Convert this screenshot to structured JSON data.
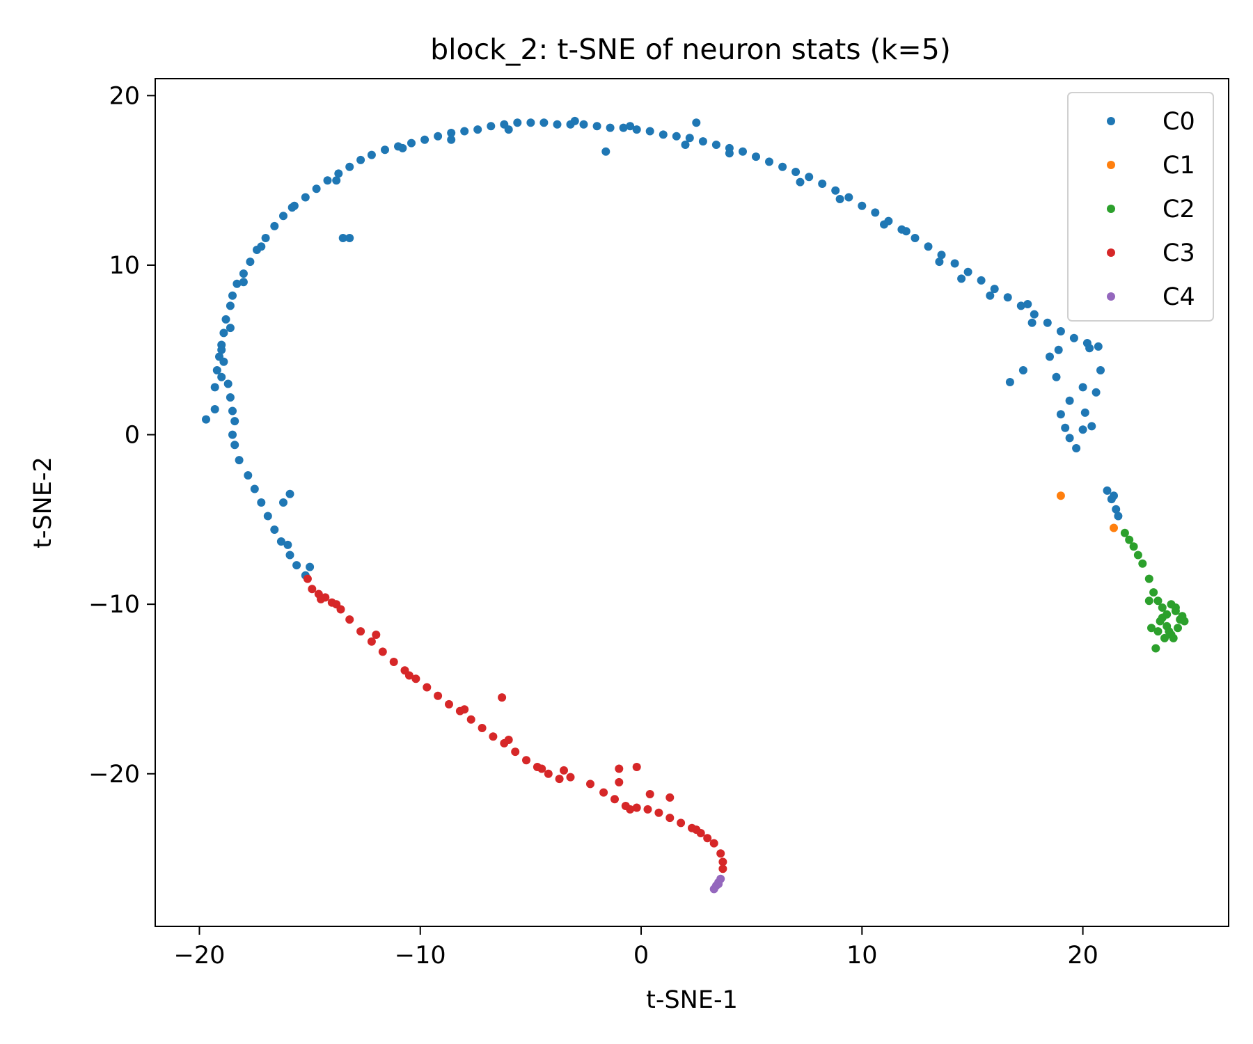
{
  "chart_data": {
    "type": "scatter",
    "title": "block_2: t-SNE of neuron stats (k=5)",
    "xlabel": "t-SNE-1",
    "ylabel": "t-SNE-2",
    "xlim": [
      -22,
      26.6
    ],
    "ylim": [
      -29,
      21
    ],
    "x_ticks": [
      -20,
      -10,
      0,
      10,
      20
    ],
    "y_ticks": [
      -20,
      -10,
      0,
      10,
      20
    ],
    "x_tick_labels": [
      "−20",
      "−10",
      "0",
      "10",
      "20"
    ],
    "y_tick_labels": [
      "−20",
      "−10",
      "0",
      "10",
      "20"
    ],
    "grid": false,
    "legend_position": "top-right",
    "series": [
      {
        "name": "C0",
        "color": "#1f77b4",
        "points": [
          [
            -19.7,
            0.9
          ],
          [
            -19.3,
            1.5
          ],
          [
            -19.3,
            2.8
          ],
          [
            -19.2,
            3.8
          ],
          [
            -19.1,
            4.6
          ],
          [
            -19.0,
            5.3
          ],
          [
            -18.9,
            6.0
          ],
          [
            -18.8,
            6.8
          ],
          [
            -18.6,
            7.6
          ],
          [
            -18.5,
            8.2
          ],
          [
            -18.3,
            8.9
          ],
          [
            -18.0,
            9.5
          ],
          [
            -17.7,
            10.2
          ],
          [
            -17.4,
            10.9
          ],
          [
            -17.0,
            11.6
          ],
          [
            -16.6,
            12.3
          ],
          [
            -16.2,
            12.9
          ],
          [
            -15.7,
            13.5
          ],
          [
            -15.2,
            14.0
          ],
          [
            -14.7,
            14.5
          ],
          [
            -14.2,
            15.0
          ],
          [
            -13.7,
            15.4
          ],
          [
            -13.2,
            15.8
          ],
          [
            -12.7,
            16.2
          ],
          [
            -12.2,
            16.5
          ],
          [
            -11.6,
            16.8
          ],
          [
            -11.0,
            17.0
          ],
          [
            -10.4,
            17.2
          ],
          [
            -9.8,
            17.4
          ],
          [
            -9.2,
            17.6
          ],
          [
            -8.6,
            17.8
          ],
          [
            -8.0,
            17.9
          ],
          [
            -7.4,
            18.0
          ],
          [
            -6.8,
            18.2
          ],
          [
            -6.2,
            18.3
          ],
          [
            -5.6,
            18.4
          ],
          [
            -5.0,
            18.4
          ],
          [
            -4.4,
            18.4
          ],
          [
            -3.8,
            18.3
          ],
          [
            -3.2,
            18.3
          ],
          [
            -2.6,
            18.3
          ],
          [
            -2.0,
            18.2
          ],
          [
            -1.4,
            18.1
          ],
          [
            -0.8,
            18.1
          ],
          [
            -0.2,
            18.0
          ],
          [
            0.4,
            17.9
          ],
          [
            1.0,
            17.7
          ],
          [
            1.6,
            17.6
          ],
          [
            2.2,
            17.5
          ],
          [
            2.8,
            17.3
          ],
          [
            3.4,
            17.1
          ],
          [
            4.0,
            16.9
          ],
          [
            4.6,
            16.7
          ],
          [
            5.2,
            16.4
          ],
          [
            5.8,
            16.1
          ],
          [
            6.4,
            15.8
          ],
          [
            7.0,
            15.5
          ],
          [
            7.6,
            15.2
          ],
          [
            8.2,
            14.8
          ],
          [
            8.8,
            14.4
          ],
          [
            9.4,
            14.0
          ],
          [
            10.0,
            13.5
          ],
          [
            10.6,
            13.1
          ],
          [
            11.2,
            12.6
          ],
          [
            11.8,
            12.1
          ],
          [
            12.4,
            11.6
          ],
          [
            13.0,
            11.1
          ],
          [
            13.6,
            10.6
          ],
          [
            14.2,
            10.1
          ],
          [
            14.8,
            9.6
          ],
          [
            15.4,
            9.1
          ],
          [
            16.0,
            8.6
          ],
          [
            16.6,
            8.1
          ],
          [
            17.2,
            7.6
          ],
          [
            17.8,
            7.1
          ],
          [
            18.4,
            6.6
          ],
          [
            19.0,
            6.1
          ],
          [
            19.6,
            5.7
          ],
          [
            20.2,
            5.4
          ],
          [
            20.7,
            5.2
          ],
          [
            -13.5,
            11.6
          ],
          [
            -13.2,
            11.6
          ],
          [
            -1.6,
            16.7
          ],
          [
            2.5,
            18.4
          ],
          [
            -19.0,
            5.0
          ],
          [
            -18.9,
            4.3
          ],
          [
            -18.7,
            3.0
          ],
          [
            -18.6,
            2.2
          ],
          [
            -18.5,
            1.4
          ],
          [
            -18.4,
            0.8
          ],
          [
            -18.5,
            0.0
          ],
          [
            -18.4,
            -0.6
          ],
          [
            -18.2,
            -1.5
          ],
          [
            -17.8,
            -2.4
          ],
          [
            -17.5,
            -3.2
          ],
          [
            -17.2,
            -4.0
          ],
          [
            -16.9,
            -4.8
          ],
          [
            -16.6,
            -5.6
          ],
          [
            -16.3,
            -6.3
          ],
          [
            -15.9,
            -7.1
          ],
          [
            -15.6,
            -7.7
          ],
          [
            -15.2,
            -8.3
          ],
          [
            -16.2,
            -4.0
          ],
          [
            -15.9,
            -3.5
          ],
          [
            -15.0,
            -7.8
          ],
          [
            -16.0,
            -6.5
          ],
          [
            17.7,
            6.6
          ],
          [
            16.7,
            3.1
          ],
          [
            17.3,
            3.8
          ],
          [
            18.5,
            4.6
          ],
          [
            18.8,
            3.4
          ],
          [
            19.0,
            1.2
          ],
          [
            19.2,
            0.4
          ],
          [
            19.4,
            -0.2
          ],
          [
            19.7,
            -0.8
          ],
          [
            20.1,
            1.3
          ],
          [
            20.4,
            0.5
          ],
          [
            20.6,
            2.5
          ],
          [
            20.8,
            3.8
          ],
          [
            20.3,
            5.1
          ],
          [
            21.1,
            -3.3
          ],
          [
            21.3,
            -3.8
          ],
          [
            21.5,
            -4.4
          ],
          [
            21.6,
            -4.8
          ],
          [
            21.4,
            -3.6
          ],
          [
            15.8,
            8.2
          ],
          [
            17.5,
            7.7
          ],
          [
            18.9,
            5.0
          ],
          [
            19.4,
            2.0
          ],
          [
            20.0,
            0.3
          ],
          [
            20.0,
            2.8
          ],
          [
            13.5,
            10.2
          ],
          [
            14.5,
            9.2
          ],
          [
            11.0,
            12.4
          ],
          [
            12.0,
            12.0
          ],
          [
            9.0,
            13.9
          ],
          [
            7.2,
            14.9
          ],
          [
            4.0,
            16.6
          ],
          [
            2.0,
            17.1
          ],
          [
            -0.5,
            18.2
          ],
          [
            -3.0,
            18.5
          ],
          [
            -6.0,
            18.0
          ],
          [
            -8.6,
            17.4
          ],
          [
            -10.8,
            16.9
          ],
          [
            -13.8,
            15.0
          ],
          [
            -15.8,
            13.4
          ],
          [
            -17.2,
            11.1
          ],
          [
            -18.0,
            9.0
          ],
          [
            -18.6,
            6.3
          ],
          [
            -19.0,
            3.4
          ]
        ]
      },
      {
        "name": "C1",
        "color": "#ff7f0e",
        "points": [
          [
            19.0,
            -3.6
          ],
          [
            21.4,
            -5.5
          ]
        ]
      },
      {
        "name": "C2",
        "color": "#2ca02c",
        "points": [
          [
            21.9,
            -5.8
          ],
          [
            22.1,
            -6.2
          ],
          [
            22.3,
            -6.6
          ],
          [
            22.5,
            -7.1
          ],
          [
            22.7,
            -7.6
          ],
          [
            23.0,
            -8.5
          ],
          [
            23.2,
            -9.3
          ],
          [
            23.4,
            -9.8
          ],
          [
            23.6,
            -10.2
          ],
          [
            23.8,
            -10.6
          ],
          [
            24.0,
            -10.0
          ],
          [
            24.2,
            -10.4
          ],
          [
            24.4,
            -10.9
          ],
          [
            24.6,
            -11.0
          ],
          [
            24.3,
            -11.4
          ],
          [
            24.0,
            -11.8
          ],
          [
            23.7,
            -12.0
          ],
          [
            23.4,
            -11.6
          ],
          [
            23.1,
            -11.4
          ],
          [
            23.3,
            -12.6
          ],
          [
            23.5,
            -11.0
          ],
          [
            23.8,
            -11.3
          ],
          [
            24.2,
            -10.2
          ],
          [
            24.5,
            -10.7
          ],
          [
            23.0,
            -9.8
          ],
          [
            23.6,
            -10.8
          ],
          [
            23.9,
            -11.6
          ],
          [
            24.1,
            -12.0
          ]
        ]
      },
      {
        "name": "C3",
        "color": "#d62728",
        "points": [
          [
            -15.1,
            -8.5
          ],
          [
            -14.9,
            -9.1
          ],
          [
            -14.6,
            -9.4
          ],
          [
            -14.3,
            -9.6
          ],
          [
            -14.0,
            -9.9
          ],
          [
            -13.6,
            -10.3
          ],
          [
            -13.2,
            -10.9
          ],
          [
            -12.7,
            -11.6
          ],
          [
            -12.2,
            -12.2
          ],
          [
            -11.7,
            -12.8
          ],
          [
            -11.2,
            -13.4
          ],
          [
            -10.7,
            -13.9
          ],
          [
            -10.2,
            -14.4
          ],
          [
            -9.7,
            -14.9
          ],
          [
            -9.2,
            -15.4
          ],
          [
            -8.7,
            -15.9
          ],
          [
            -8.2,
            -16.3
          ],
          [
            -7.7,
            -16.8
          ],
          [
            -7.2,
            -17.3
          ],
          [
            -6.7,
            -17.8
          ],
          [
            -6.2,
            -18.2
          ],
          [
            -5.7,
            -18.7
          ],
          [
            -5.2,
            -19.2
          ],
          [
            -4.7,
            -19.6
          ],
          [
            -4.2,
            -20.0
          ],
          [
            -3.7,
            -20.3
          ],
          [
            -3.2,
            -20.2
          ],
          [
            -2.3,
            -20.6
          ],
          [
            -1.7,
            -21.1
          ],
          [
            -1.2,
            -21.5
          ],
          [
            -0.7,
            -21.9
          ],
          [
            -0.2,
            -22.0
          ],
          [
            0.3,
            -22.1
          ],
          [
            0.8,
            -22.3
          ],
          [
            1.3,
            -22.6
          ],
          [
            1.8,
            -22.9
          ],
          [
            2.3,
            -23.2
          ],
          [
            2.7,
            -23.5
          ],
          [
            3.0,
            -23.8
          ],
          [
            3.3,
            -24.1
          ],
          [
            3.6,
            -24.7
          ],
          [
            3.7,
            -25.2
          ],
          [
            3.7,
            -25.6
          ],
          [
            -6.3,
            -15.5
          ],
          [
            -1.0,
            -19.7
          ],
          [
            -0.2,
            -19.6
          ],
          [
            -1.0,
            -20.5
          ],
          [
            0.4,
            -21.2
          ],
          [
            1.3,
            -21.4
          ],
          [
            -14.5,
            -9.7
          ],
          [
            -13.8,
            -10.0
          ],
          [
            -12.0,
            -11.8
          ],
          [
            -10.5,
            -14.2
          ],
          [
            -8.0,
            -16.2
          ],
          [
            -6.0,
            -18.0
          ],
          [
            -4.5,
            -19.7
          ],
          [
            -3.5,
            -19.8
          ],
          [
            -0.5,
            -22.1
          ],
          [
            2.5,
            -23.3
          ]
        ]
      },
      {
        "name": "C4",
        "color": "#9467bd",
        "points": [
          [
            3.3,
            -26.8
          ],
          [
            3.4,
            -26.6
          ],
          [
            3.5,
            -26.4
          ],
          [
            3.6,
            -26.2
          ],
          [
            3.5,
            -26.5
          ]
        ]
      }
    ]
  }
}
